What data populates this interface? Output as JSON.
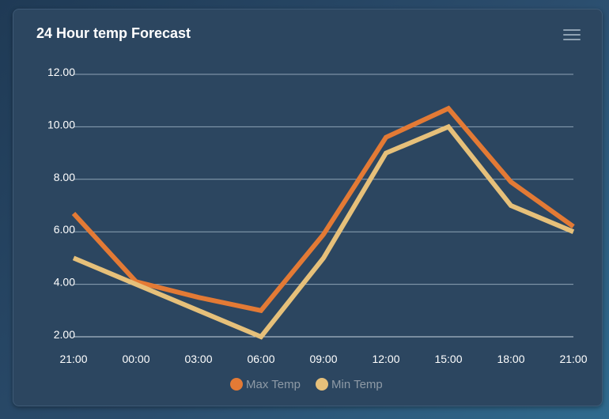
{
  "chart_data": {
    "type": "line",
    "title": "24 Hour temp Forecast",
    "categories": [
      "21:00",
      "00:00",
      "03:00",
      "06:00",
      "09:00",
      "12:00",
      "15:00",
      "18:00",
      "21:00"
    ],
    "y_tick_labels": [
      "2.00",
      "4.00",
      "6.00",
      "8.00",
      "10.00",
      "12.00"
    ],
    "y_ticks": [
      2,
      4,
      6,
      8,
      10,
      12
    ],
    "ylim": [
      2,
      12
    ],
    "grid": true,
    "legend_position": "bottom-center",
    "series": [
      {
        "name": "Max Temp",
        "color": "#e37a35",
        "values": [
          6.7,
          4.1,
          3.5,
          3.0,
          5.9,
          9.6,
          10.7,
          7.9,
          6.2
        ]
      },
      {
        "name": "Min Temp",
        "color": "#e6c07a",
        "values": [
          5.0,
          4.0,
          3.0,
          2.0,
          5.0,
          9.0,
          10.0,
          7.0,
          6.0
        ]
      }
    ]
  },
  "colors": {
    "card_background": "#2c4660",
    "grid_line": "#8ea3b6",
    "axis_text": "#ffffff",
    "legend_text": "#8e9aa6"
  },
  "icons": {
    "menu": "hamburger-menu-icon"
  }
}
